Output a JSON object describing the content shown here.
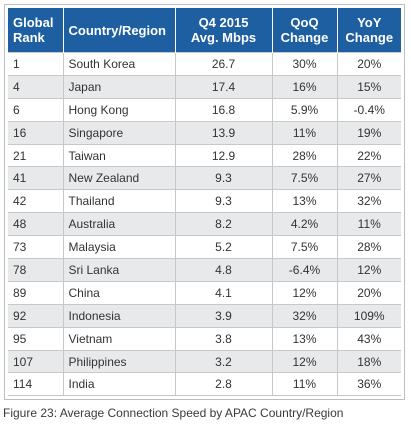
{
  "table": {
    "headers": {
      "rank": [
        "Global",
        "Rank"
      ],
      "country": "Country/Region",
      "speed": [
        "Q4 2015",
        "Avg. Mbps"
      ],
      "qoq": [
        "QoQ",
        "Change"
      ],
      "yoy": [
        "YoY",
        "Change"
      ]
    },
    "rows": [
      {
        "rank": "1",
        "country": "South Korea",
        "speed": "26.7",
        "qoq": "30%",
        "yoy": "20%"
      },
      {
        "rank": "4",
        "country": "Japan",
        "speed": "17.4",
        "qoq": "16%",
        "yoy": "15%"
      },
      {
        "rank": "6",
        "country": "Hong Kong",
        "speed": "16.8",
        "qoq": "5.9%",
        "yoy": "-0.4%"
      },
      {
        "rank": "16",
        "country": "Singapore",
        "speed": "13.9",
        "qoq": "11%",
        "yoy": "19%"
      },
      {
        "rank": "21",
        "country": "Taiwan",
        "speed": "12.9",
        "qoq": "28%",
        "yoy": "22%"
      },
      {
        "rank": "41",
        "country": "New Zealand",
        "speed": "9.3",
        "qoq": "7.5%",
        "yoy": "27%"
      },
      {
        "rank": "42",
        "country": "Thailand",
        "speed": "9.3",
        "qoq": "13%",
        "yoy": "32%"
      },
      {
        "rank": "48",
        "country": "Australia",
        "speed": "8.2",
        "qoq": "4.2%",
        "yoy": "11%"
      },
      {
        "rank": "73",
        "country": "Malaysia",
        "speed": "5.2",
        "qoq": "7.5%",
        "yoy": "28%"
      },
      {
        "rank": "78",
        "country": "Sri Lanka",
        "speed": "4.8",
        "qoq": "-6.4%",
        "yoy": "12%"
      },
      {
        "rank": "89",
        "country": "China",
        "speed": "4.1",
        "qoq": "12%",
        "yoy": "20%"
      },
      {
        "rank": "92",
        "country": "Indonesia",
        "speed": "3.9",
        "qoq": "32%",
        "yoy": "109%"
      },
      {
        "rank": "95",
        "country": "Vietnam",
        "speed": "3.8",
        "qoq": "13%",
        "yoy": "43%"
      },
      {
        "rank": "107",
        "country": "Philippines",
        "speed": "3.2",
        "qoq": "12%",
        "yoy": "18%"
      },
      {
        "rank": "114",
        "country": "India",
        "speed": "2.8",
        "qoq": "11%",
        "yoy": "36%"
      }
    ]
  },
  "caption": "Figure 23: Average Connection Speed by APAC Country/Region",
  "colors": {
    "header_bg": "#1e5fa2",
    "header_text": "#ffffff",
    "stripe_bg": "#e8e9ea",
    "grid_line": "#c6c8ca"
  }
}
